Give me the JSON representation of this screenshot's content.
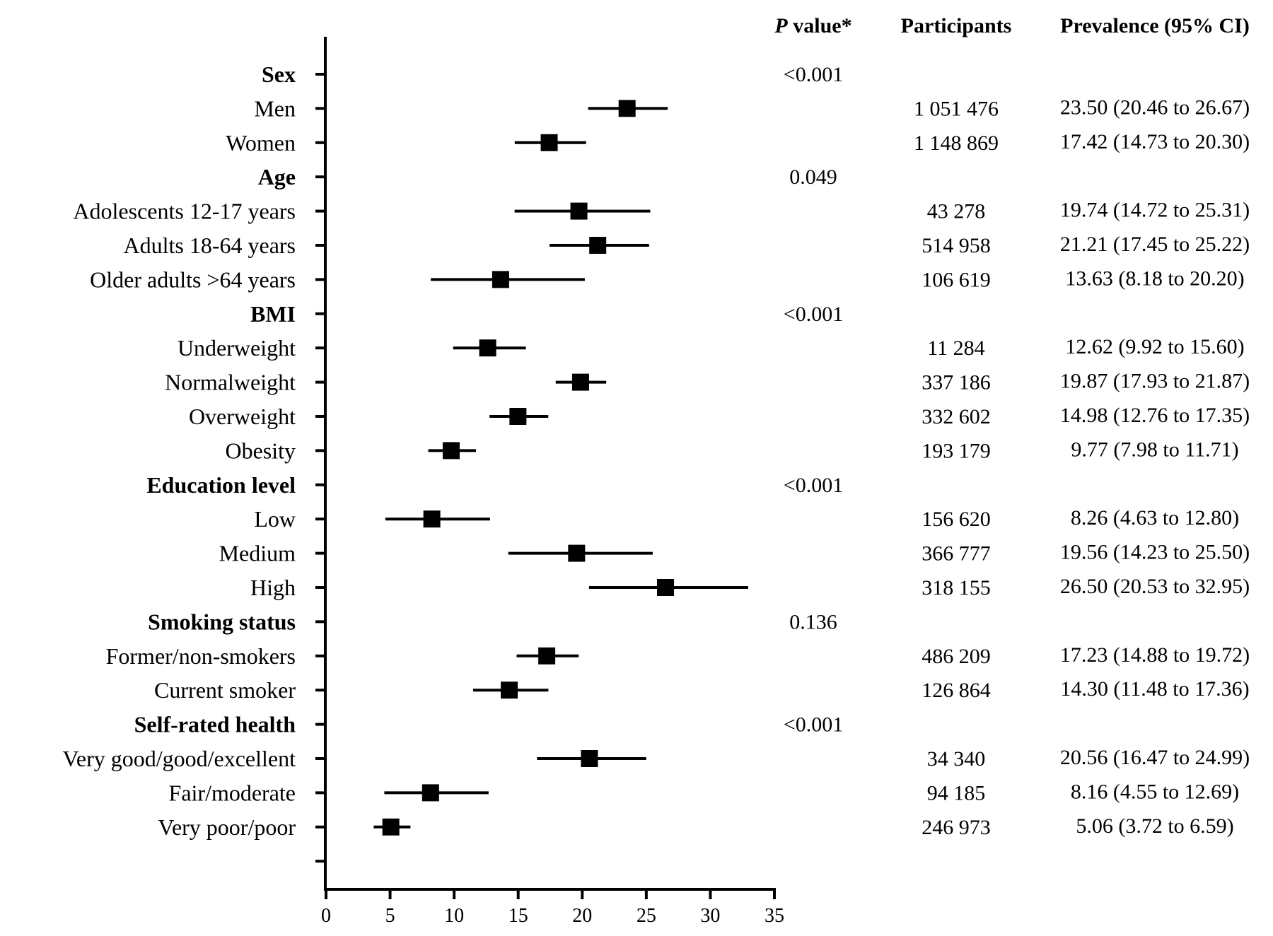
{
  "columns": {
    "p_value": {
      "prefix": "P",
      "label": " value*"
    },
    "participants": "Participants",
    "prevalence": "Prevalence (95% CI)"
  },
  "rows": [
    {
      "label": "Sex",
      "group": true,
      "p": "<0.001"
    },
    {
      "label": "Men",
      "group": false,
      "est": 23.5,
      "lo": 20.46,
      "hi": 26.67,
      "participants": "1 051 476",
      "ci_text": "23.50 (20.46 to 26.67)"
    },
    {
      "label": "Women",
      "group": false,
      "est": 17.42,
      "lo": 14.73,
      "hi": 20.3,
      "participants": "1 148 869",
      "ci_text": "17.42 (14.73 to 20.30)"
    },
    {
      "label": "Age",
      "group": true,
      "p": "0.049"
    },
    {
      "label": "Adolescents 12-17 years",
      "group": false,
      "est": 19.74,
      "lo": 14.72,
      "hi": 25.31,
      "participants": "43 278",
      "ci_text": "19.74 (14.72 to 25.31)"
    },
    {
      "label": "Adults 18-64 years",
      "group": false,
      "est": 21.21,
      "lo": 17.45,
      "hi": 25.22,
      "participants": "514 958",
      "ci_text": "21.21 (17.45 to 25.22)"
    },
    {
      "label": "Older adults >64 years",
      "group": false,
      "est": 13.63,
      "lo": 8.18,
      "hi": 20.2,
      "participants": "106 619",
      "ci_text": "13.63 (8.18 to 20.20)"
    },
    {
      "label": "BMI",
      "group": true,
      "p": "<0.001"
    },
    {
      "label": "Underweight",
      "group": false,
      "est": 12.62,
      "lo": 9.92,
      "hi": 15.6,
      "participants": "11 284",
      "ci_text": "12.62 (9.92 to 15.60)"
    },
    {
      "label": "Normalweight",
      "group": false,
      "est": 19.87,
      "lo": 17.93,
      "hi": 21.87,
      "participants": "337 186",
      "ci_text": "19.87 (17.93 to 21.87)"
    },
    {
      "label": "Overweight",
      "group": false,
      "est": 14.98,
      "lo": 12.76,
      "hi": 17.35,
      "participants": "332 602",
      "ci_text": "14.98 (12.76 to 17.35)"
    },
    {
      "label": "Obesity",
      "group": false,
      "est": 9.77,
      "lo": 7.98,
      "hi": 11.71,
      "participants": "193 179",
      "ci_text": "9.77 (7.98 to 11.71)"
    },
    {
      "label": "Education level",
      "group": true,
      "p": "<0.001"
    },
    {
      "label": "Low",
      "group": false,
      "est": 8.26,
      "lo": 4.63,
      "hi": 12.8,
      "participants": "156 620",
      "ci_text": "8.26 (4.63 to 12.80)"
    },
    {
      "label": "Medium",
      "group": false,
      "est": 19.56,
      "lo": 14.23,
      "hi": 25.5,
      "participants": "366 777",
      "ci_text": "19.56 (14.23 to 25.50)"
    },
    {
      "label": "High",
      "group": false,
      "est": 26.5,
      "lo": 20.53,
      "hi": 32.95,
      "participants": "318 155",
      "ci_text": "26.50 (20.53 to 32.95)"
    },
    {
      "label": "Smoking status",
      "group": true,
      "p": "0.136"
    },
    {
      "label": "Former/non-smokers",
      "group": false,
      "est": 17.23,
      "lo": 14.88,
      "hi": 19.72,
      "participants": "486 209",
      "ci_text": "17.23 (14.88 to 19.72)"
    },
    {
      "label": "Current smoker",
      "group": false,
      "est": 14.3,
      "lo": 11.48,
      "hi": 17.36,
      "participants": "126 864",
      "ci_text": "14.30 (11.48 to 17.36)"
    },
    {
      "label": "Self-rated health",
      "group": true,
      "p": "<0.001"
    },
    {
      "label": "Very good/good/excellent",
      "group": false,
      "est": 20.56,
      "lo": 16.47,
      "hi": 24.99,
      "participants": "34 340",
      "ci_text": "20.56 (16.47 to 24.99)"
    },
    {
      "label": "Fair/moderate",
      "group": false,
      "est": 8.16,
      "lo": 4.55,
      "hi": 12.69,
      "participants": "94 185",
      "ci_text": "8.16 (4.55 to 12.69)"
    },
    {
      "label": "Very poor/poor",
      "group": false,
      "est": 5.06,
      "lo": 3.72,
      "hi": 6.59,
      "participants": "246 973",
      "ci_text": "5.06 (3.72 to 6.59)"
    }
  ],
  "chart_data": {
    "type": "forest",
    "xlim": [
      0,
      35
    ],
    "x_ticks": [
      0,
      5,
      10,
      15,
      20,
      25,
      30,
      35
    ],
    "xlabel": "",
    "ylabel": "",
    "grid": false,
    "series": [
      {
        "categories": [
          "Men",
          "Women",
          "Adolescents 12-17 years",
          "Adults 18-64 years",
          "Older adults >64 years",
          "Underweight",
          "Normalweight",
          "Overweight",
          "Obesity",
          "Low",
          "Medium",
          "High",
          "Former/non-smokers",
          "Current smoker",
          "Very good/good/excellent",
          "Fair/moderate",
          "Very poor/poor"
        ],
        "values": [
          23.5,
          17.42,
          19.74,
          21.21,
          13.63,
          12.62,
          19.87,
          14.98,
          9.77,
          8.26,
          19.56,
          26.5,
          17.23,
          14.3,
          20.56,
          8.16,
          5.06
        ],
        "ci_lower": [
          20.46,
          14.73,
          14.72,
          17.45,
          8.18,
          9.92,
          17.93,
          12.76,
          7.98,
          4.63,
          14.23,
          20.53,
          14.88,
          11.48,
          16.47,
          4.55,
          3.72
        ],
        "ci_upper": [
          26.67,
          20.3,
          25.31,
          25.22,
          20.2,
          15.6,
          21.87,
          17.35,
          11.71,
          12.8,
          25.5,
          32.95,
          19.72,
          17.36,
          24.99,
          12.69,
          6.59
        ]
      }
    ]
  }
}
